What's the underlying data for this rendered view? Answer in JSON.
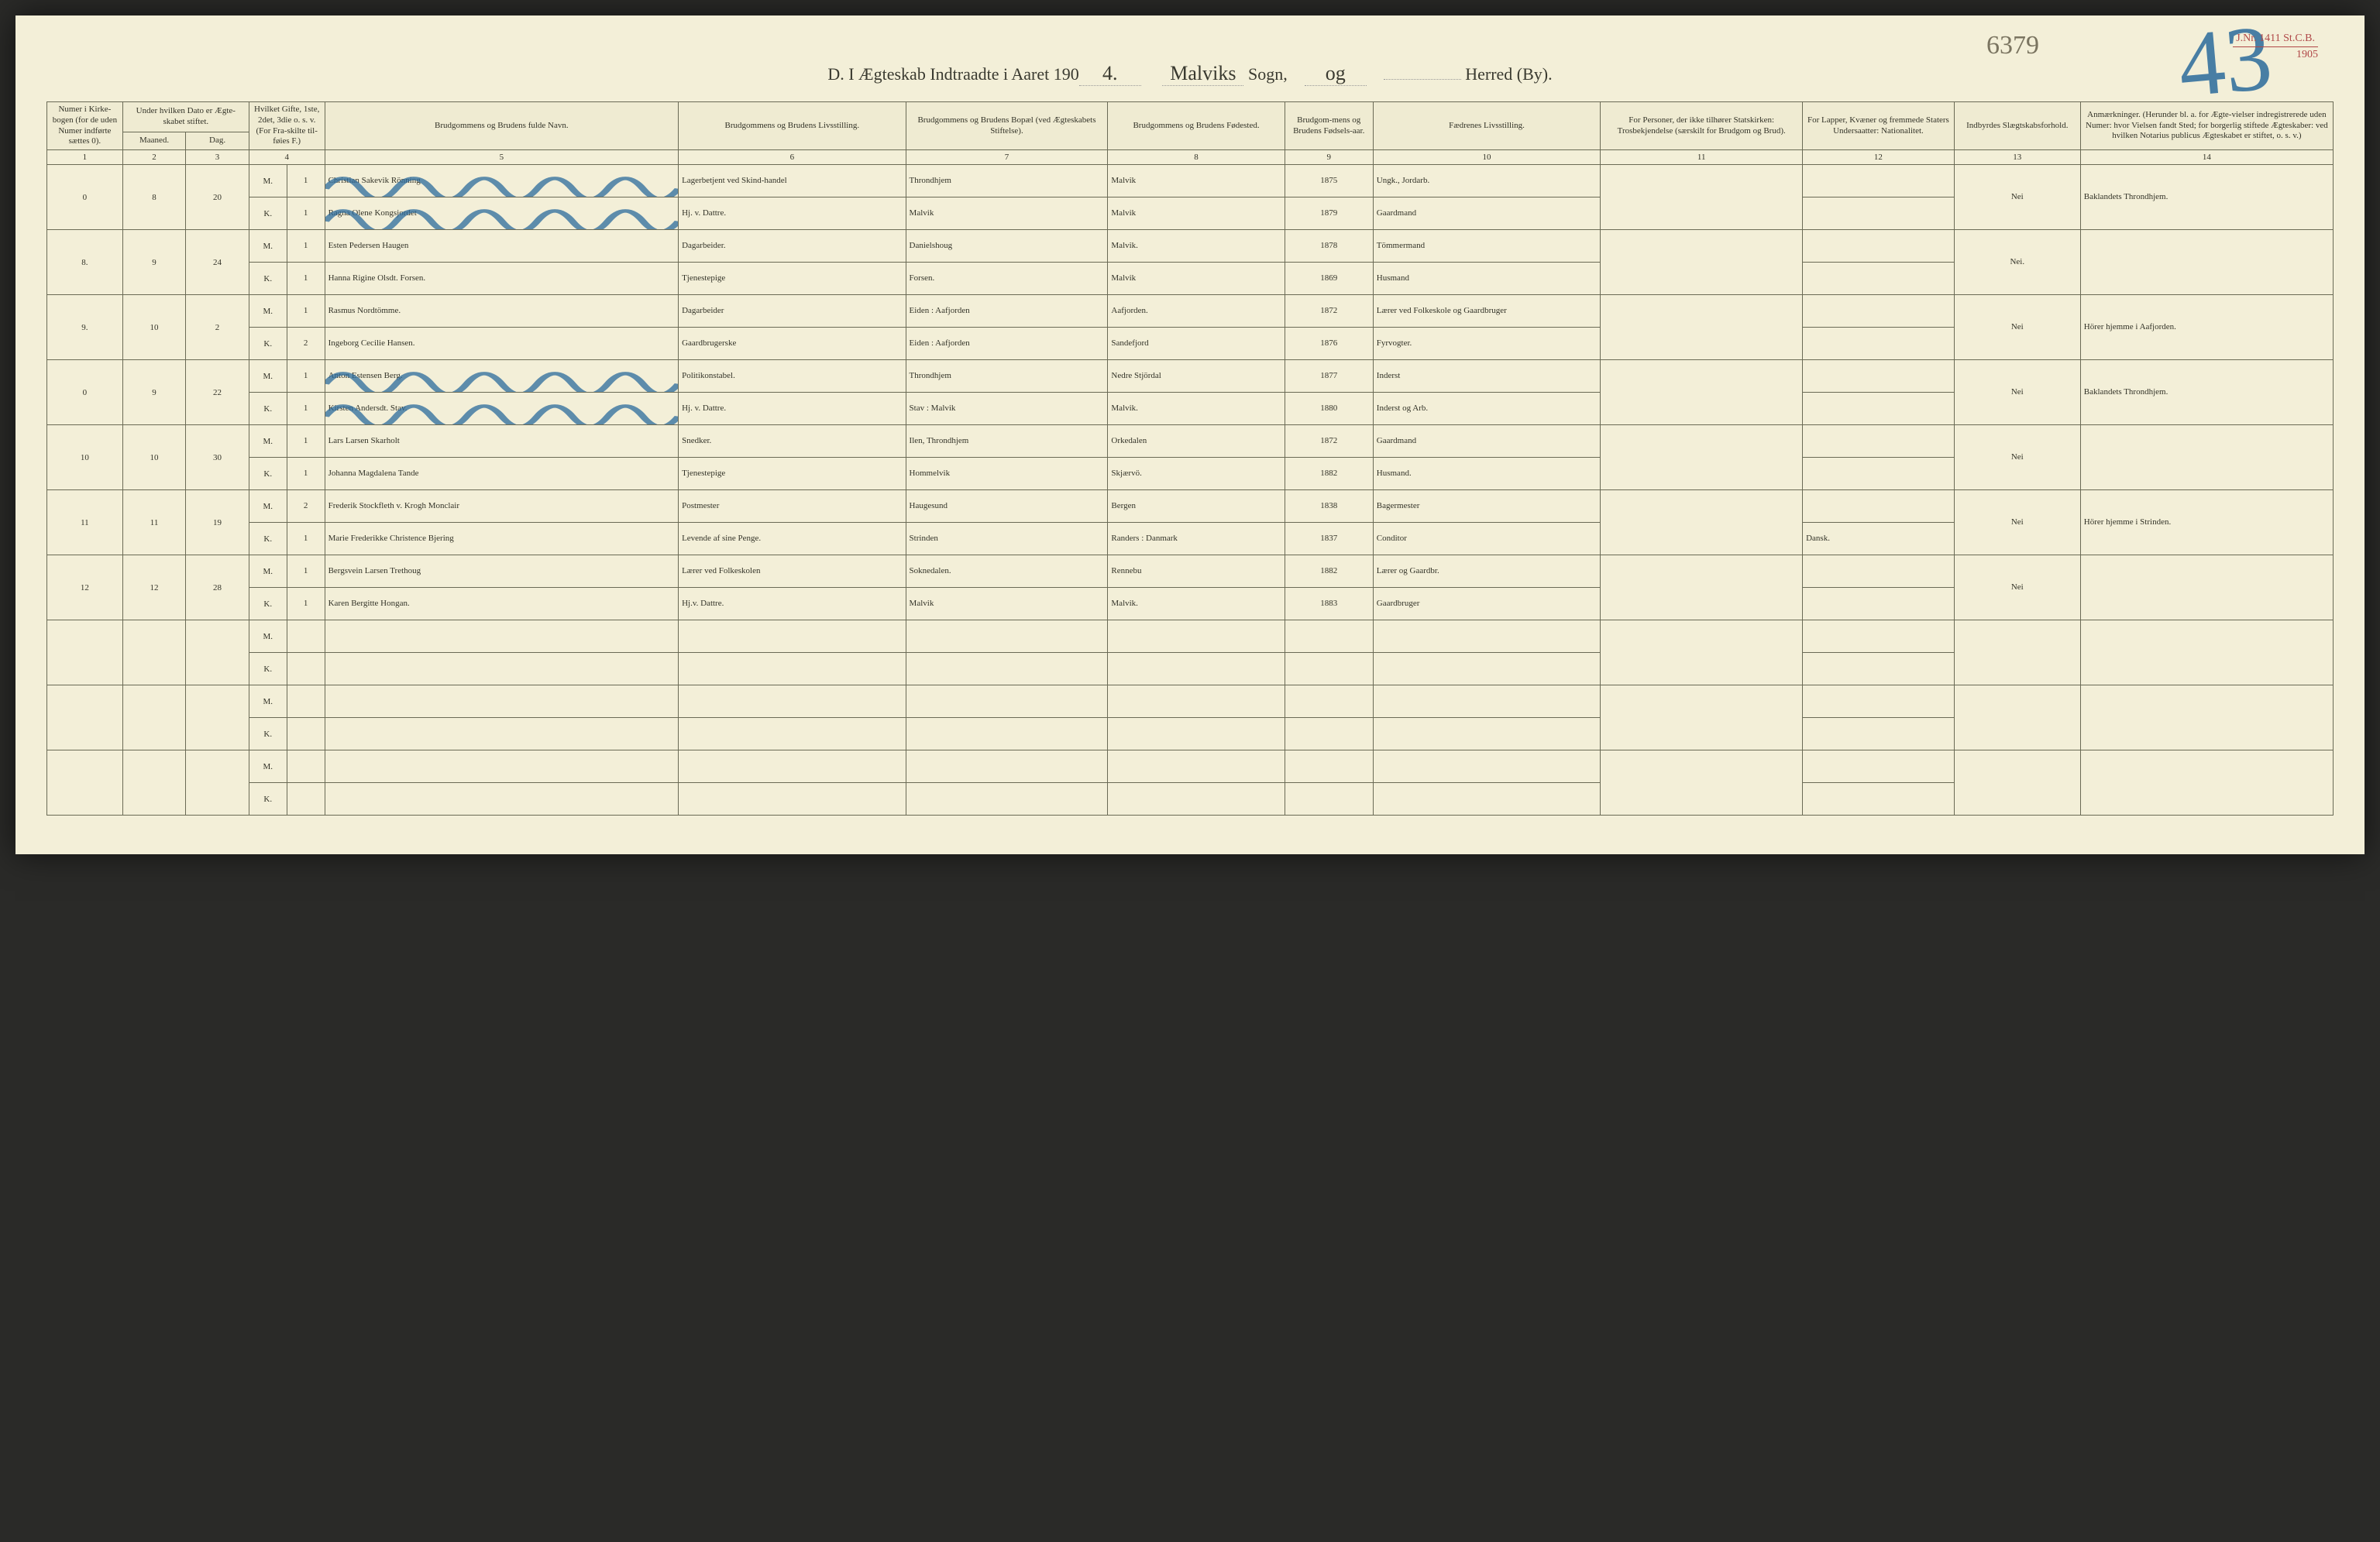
{
  "document": {
    "background_color": "#f3efd8",
    "ink_color": "#3e3a2c",
    "rule_color": "#6a6a55",
    "blue_pencil": "#2b6b9c",
    "pencil_gray": "#7a7460",
    "stamp_color": "#b04848"
  },
  "header": {
    "title_prefix": "D.   I Ægteskab Indtraadte i Aaret 190",
    "year_suffix": "4.",
    "sogn_label": "Sogn,",
    "sogn_value": "Malviks",
    "og": "og",
    "herred_label": "Herred (By).",
    "herred_value": "",
    "pencil_number": "6379",
    "big_number": "43",
    "stamp_jnr_label": "J.Nr.",
    "stamp_jnr_value": "1411",
    "stamp_stcb": "St.C.B.",
    "stamp_year": "1905"
  },
  "columns": {
    "c1": "Numer i Kirke-bogen (for de uden Numer indførte sættes 0).",
    "c2_group": "Under hvilken Dato er Ægte-skabet stiftet.",
    "c2a": "Maaned.",
    "c2b": "Dag.",
    "c4": "Hvilket Gifte, 1ste, 2det, 3die o. s. v. (For Fra-skilte til-føies F.)",
    "c5": "Brudgommens og Brudens fulde Navn.",
    "c6": "Brudgommens og Brudens Livsstilling.",
    "c7": "Brudgommens og Brudens Bopæl (ved Ægteskabets Stiftelse).",
    "c8": "Brudgommens og Brudens Fødested.",
    "c9": "Brudgom-mens og Brudens Fødsels-aar.",
    "c10": "Fædrenes Livsstilling.",
    "c11": "For Personer, der ikke tilhører Statskirken: Trosbekjendelse (særskilt for Brudgom og Brud).",
    "c12": "For Lapper, Kvæner og fremmede Staters Undersaatter: Nationalitet.",
    "c13": "Indbyrdes Slægtskabsforhold.",
    "c14": "Anmærkninger. (Herunder bl. a. for Ægte-vielser indregistrerede uden Numer: hvor Vielsen fandt Sted; for borgerlig stiftede Ægteskaber: ved hvilken Notarius publicus Ægteskabet er stiftet, o. s. v.)"
  },
  "colnums": [
    "1",
    "2",
    "3",
    "4",
    "5",
    "6",
    "7",
    "8",
    "9",
    "10",
    "11",
    "12",
    "13",
    "14"
  ],
  "mk": {
    "m": "M.",
    "k": "K."
  },
  "entries": [
    {
      "num": "0",
      "maaned": "8",
      "dag": "20",
      "struck": true,
      "m": {
        "gifte": "1",
        "navn": "Christian Sakevik Rönning",
        "stilling": "Lagerbetjent ved Skind-handel",
        "bopel": "Throndhjem",
        "fodested": "Malvik",
        "aar": "1875",
        "faedre": "Ungk., Jordarb."
      },
      "k": {
        "gifte": "1",
        "navn": "Ragna Olene Kongsjordet",
        "stilling": "Hj. v. Dattre.",
        "bopel": "Malvik",
        "fodested": "Malvik",
        "aar": "1879",
        "faedre": "Gaardmand"
      },
      "slaegt": "Nei",
      "anm": "Baklandets Throndhjem."
    },
    {
      "num": "8.",
      "maaned": "9",
      "dag": "24",
      "struck": false,
      "m": {
        "gifte": "1",
        "navn": "Esten Pedersen Haugen",
        "stilling": "Dagarbeider.",
        "bopel": "Danielshoug",
        "fodested": "Malvik.",
        "aar": "1878",
        "faedre": "Tömmermand"
      },
      "k": {
        "gifte": "1",
        "navn": "Hanna Rigine Olsdt. Forsen.",
        "stilling": "Tjenestepige",
        "bopel": "Forsen.",
        "fodested": "Malvik",
        "aar": "1869",
        "faedre": "Husmand"
      },
      "slaegt": "Nei.",
      "anm": ""
    },
    {
      "num": "9.",
      "maaned": "10",
      "dag": "2",
      "struck": false,
      "m": {
        "gifte": "1",
        "navn": "Rasmus Nordtömme.",
        "stilling": "Dagarbeider",
        "bopel": "Eiden : Aafjorden",
        "fodested": "Aafjorden.",
        "aar": "1872",
        "faedre": "Lærer ved Folkeskole og Gaardbruger"
      },
      "k": {
        "gifte": "2",
        "navn": "Ingeborg Cecilie Hansen.",
        "stilling": "Gaardbrugerske",
        "bopel": "Eiden : Aafjorden",
        "fodested": "Sandefjord",
        "aar": "1876",
        "faedre": "Fyrvogter."
      },
      "slaegt": "Nei",
      "anm": "Hörer hjemme i Aafjorden."
    },
    {
      "num": "0",
      "maaned": "9",
      "dag": "22",
      "struck": true,
      "m": {
        "gifte": "1",
        "navn": "Anton Estensen Berg.",
        "stilling": "Politikonstabel.",
        "bopel": "Throndhjem",
        "fodested": "Nedre Stjördal",
        "aar": "1877",
        "faedre": "Inderst"
      },
      "k": {
        "gifte": "1",
        "navn": "Kirsten Andersdt. Stav.",
        "stilling": "Hj. v. Dattre.",
        "bopel": "Stav : Malvik",
        "fodested": "Malvik.",
        "aar": "1880",
        "faedre": "Inderst og Arb."
      },
      "slaegt": "Nei",
      "anm": "Baklandets Throndhjem."
    },
    {
      "num": "10",
      "maaned": "10",
      "dag": "30",
      "struck": false,
      "m": {
        "gifte": "1",
        "navn": "Lars Larsen Skarholt",
        "stilling": "Snedker.",
        "bopel": "Ilen, Throndhjem",
        "fodested": "Orkedalen",
        "aar": "1872",
        "faedre": "Gaardmand"
      },
      "k": {
        "gifte": "1",
        "navn": "Johanna Magdalena Tande",
        "stilling": "Tjenestepige",
        "bopel": "Hommelvik",
        "fodested": "Skjærvö.",
        "aar": "1882",
        "faedre": "Husmand."
      },
      "slaegt": "Nei",
      "anm": ""
    },
    {
      "num": "11",
      "maaned": "11",
      "dag": "19",
      "struck": false,
      "m": {
        "gifte": "2",
        "navn": "Frederik Stockfleth v. Krogh Monclair",
        "stilling": "Postmester",
        "bopel": "Haugesund",
        "fodested": "Bergen",
        "aar": "1838",
        "faedre": "Bagermester"
      },
      "k": {
        "gifte": "1",
        "navn": "Marie Frederikke Christence Bjering",
        "stilling": "Levende af sine Penge.",
        "bopel": "Strinden",
        "fodested": "Randers : Danmark",
        "aar": "1837",
        "faedre": "Conditor"
      },
      "nationalitet_k": "Dansk.",
      "slaegt": "Nei",
      "anm": "Hörer hjemme i Strinden."
    },
    {
      "num": "12",
      "maaned": "12",
      "dag": "28",
      "struck": false,
      "m": {
        "gifte": "1",
        "navn": "Bergsvein Larsen Trethoug",
        "stilling": "Lærer ved Folkeskolen",
        "bopel": "Soknedalen.",
        "fodested": "Rennebu",
        "aar": "1882",
        "faedre": "Lærer og Gaardbr."
      },
      "k": {
        "gifte": "1",
        "navn": "Karen Bergitte Hongan.",
        "stilling": "Hj.v. Dattre.",
        "bopel": "Malvik",
        "fodested": "Malvik.",
        "aar": "1883",
        "faedre": "Gaardbruger"
      },
      "slaegt": "Nei",
      "anm": ""
    }
  ],
  "empty_rows": 3
}
